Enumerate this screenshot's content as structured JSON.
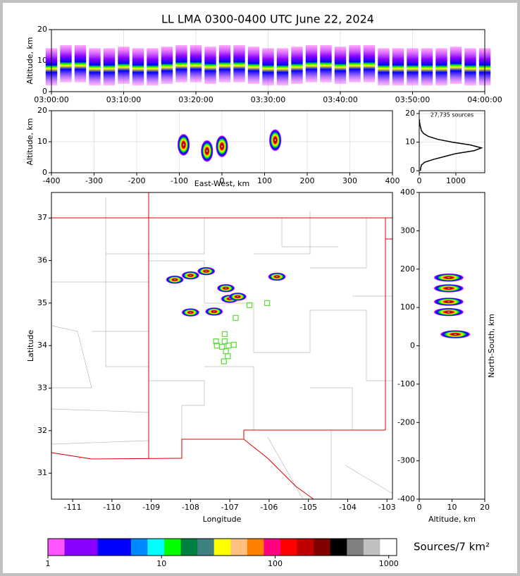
{
  "chart_data": [
    {
      "type": "columns",
      "title": "LL LMA 0300-0400 UTC June 22, 2024",
      "ylabel": "Altitude, km",
      "x": [
        0,
        2,
        4,
        6,
        8,
        10,
        12,
        14,
        16,
        18,
        20,
        22,
        24,
        26,
        28,
        30,
        32,
        34,
        36,
        38,
        40,
        42,
        44,
        46,
        48,
        50,
        52,
        54,
        56,
        58,
        60
      ],
      "values": [
        8,
        9,
        9,
        8,
        8,
        8.5,
        8,
        8,
        8.5,
        9,
        9,
        8.5,
        9,
        9,
        8.5,
        8,
        8,
        8.5,
        9,
        9,
        8.5,
        9,
        9,
        8,
        8,
        8,
        8,
        8,
        8.5,
        8,
        8
      ],
      "xlim": [
        0,
        60
      ],
      "ylim": [
        0,
        20
      ],
      "yticks": [
        0,
        10,
        20
      ],
      "grid": true,
      "xticks": [
        {
          "value": 0,
          "label": "03:00:00"
        },
        {
          "value": 10,
          "label": "03:10:00"
        },
        {
          "value": 20,
          "label": "03:20:00"
        },
        {
          "value": 30,
          "label": "03:30:00"
        },
        {
          "value": 40,
          "label": "03:40:00"
        },
        {
          "value": 50,
          "label": "03:50:00"
        },
        {
          "value": 60,
          "label": "04:00:00"
        }
      ]
    },
    {
      "type": "scatter",
      "xlabel": "East-West, km",
      "ylabel": "Altitude, km",
      "series": [
        {
          "x": [
            -90,
            -35,
            0,
            125
          ],
          "values": [
            9,
            7,
            8.5,
            10.5
          ]
        }
      ],
      "xlim": [
        -400,
        400
      ],
      "xticks": [
        -400,
        -300,
        -200,
        -100,
        0,
        100,
        200,
        300,
        400
      ],
      "ylim": [
        0,
        20
      ],
      "yticks": [
        0,
        10,
        20
      ],
      "grid": true
    },
    {
      "type": "line",
      "annotation": "27,735 sources",
      "x": [
        30,
        40,
        60,
        150,
        400,
        700,
        1000,
        1500,
        1700,
        1400,
        900,
        500,
        250,
        120,
        60,
        40,
        20,
        10,
        5
      ],
      "values": [
        0,
        1,
        2,
        3,
        4,
        5,
        6,
        7,
        8,
        9,
        10,
        11,
        12,
        13,
        14,
        15,
        16,
        17,
        18
      ],
      "xlim": [
        0,
        1790
      ],
      "xticks": [
        0,
        1000
      ],
      "ylim": [
        -0.7,
        21
      ],
      "yticks": [
        0,
        10,
        20
      ],
      "grid": true
    },
    {
      "type": "scatter",
      "xlabel": "Longitude",
      "ylabel": "Latitude",
      "series": [
        {
          "x": [
            -108.0,
            -107.4,
            -107.0,
            -107.1,
            -105.8,
            -108.4,
            -108.0,
            -107.6,
            -106.8
          ],
          "values": [
            34.78,
            34.8,
            35.1,
            35.35,
            35.62,
            35.55,
            35.65,
            35.75,
            35.15
          ]
        },
        {
          "marker": "square",
          "color": "#66dd44",
          "x": [
            -106.5,
            -106.05,
            -106.85,
            -107.13,
            -107.13,
            -107.33,
            -107.2,
            -107.03,
            -107.1,
            -107.05,
            -107.15,
            -106.9,
            -107.35
          ],
          "values": [
            34.95,
            35.0,
            34.65,
            34.27,
            34.1,
            34.0,
            33.97,
            34.0,
            33.87,
            33.75,
            33.63,
            34.02,
            34.1
          ]
        }
      ],
      "xlim": [
        -111.54,
        -102.86
      ],
      "xticks": [
        -111,
        -110,
        -109,
        -108,
        -107,
        -106,
        -105,
        -104,
        -103
      ],
      "ylim": [
        30.39,
        37.6
      ],
      "yticks": [
        31,
        32,
        33,
        34,
        35,
        36,
        37
      ]
    },
    {
      "type": "scatter",
      "xlabel": "Altitude, km",
      "ylabel": "North-South, km",
      "series": [
        {
          "x": [
            9,
            9,
            9,
            9,
            11
          ],
          "values": [
            88,
            115,
            150,
            178,
            30
          ]
        }
      ],
      "xlim": [
        0,
        20
      ],
      "xticks": [
        0,
        10,
        20
      ],
      "ylim": [
        -400,
        400
      ],
      "yticks": [
        -400,
        -300,
        -200,
        -100,
        0,
        100,
        200,
        300,
        400
      ]
    },
    {
      "type": "colorbar",
      "label": "Sources/7 km²",
      "log": true,
      "xlim": [
        1,
        1175
      ],
      "xticks": [
        1,
        10,
        100,
        1000
      ],
      "colors": [
        "#ff55ff",
        "#8800ff",
        "#8800ff",
        "#0000ff",
        "#0000ff",
        "#0088ff",
        "#00ffff",
        "#00ff00",
        "#008040",
        "#408080",
        "#ffff00",
        "#ffc080",
        "#ff8000",
        "#ff0080",
        "#ff0000",
        "#c00000",
        "#800000",
        "#000000",
        "#808080",
        "#c0c0c0",
        "#ffffff"
      ]
    }
  ]
}
